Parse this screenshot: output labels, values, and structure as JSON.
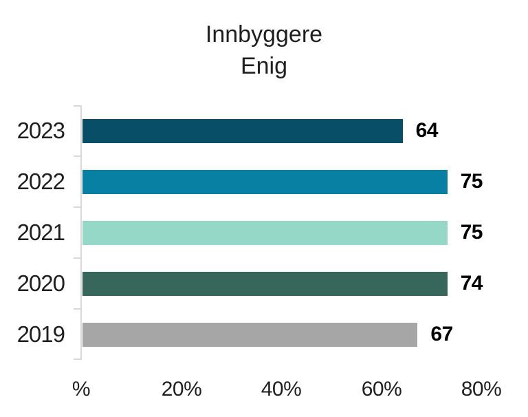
{
  "title": {
    "line1": "Innbyggere",
    "line2": "Enig"
  },
  "chart_data": {
    "type": "bar",
    "orientation": "horizontal",
    "title": "Innbyggere Enig",
    "categories": [
      "2023",
      "2022",
      "2021",
      "2020",
      "2019"
    ],
    "values": [
      64,
      75,
      75,
      74,
      67
    ],
    "bar_colors": [
      "#074E66",
      "#0780A4",
      "#96D8C7",
      "#37665A",
      "#A6A6A6"
    ],
    "x_tick_labels": [
      "%",
      "20%",
      "40%",
      "60%",
      "80%"
    ],
    "x_tick_values": [
      0,
      20,
      40,
      60,
      80
    ],
    "xlim": [
      0,
      80
    ],
    "axis_color": "#D9D9D9",
    "text_color": "#1F1F1F",
    "value_label_color": "#000000",
    "grid": false,
    "legend": false
  }
}
